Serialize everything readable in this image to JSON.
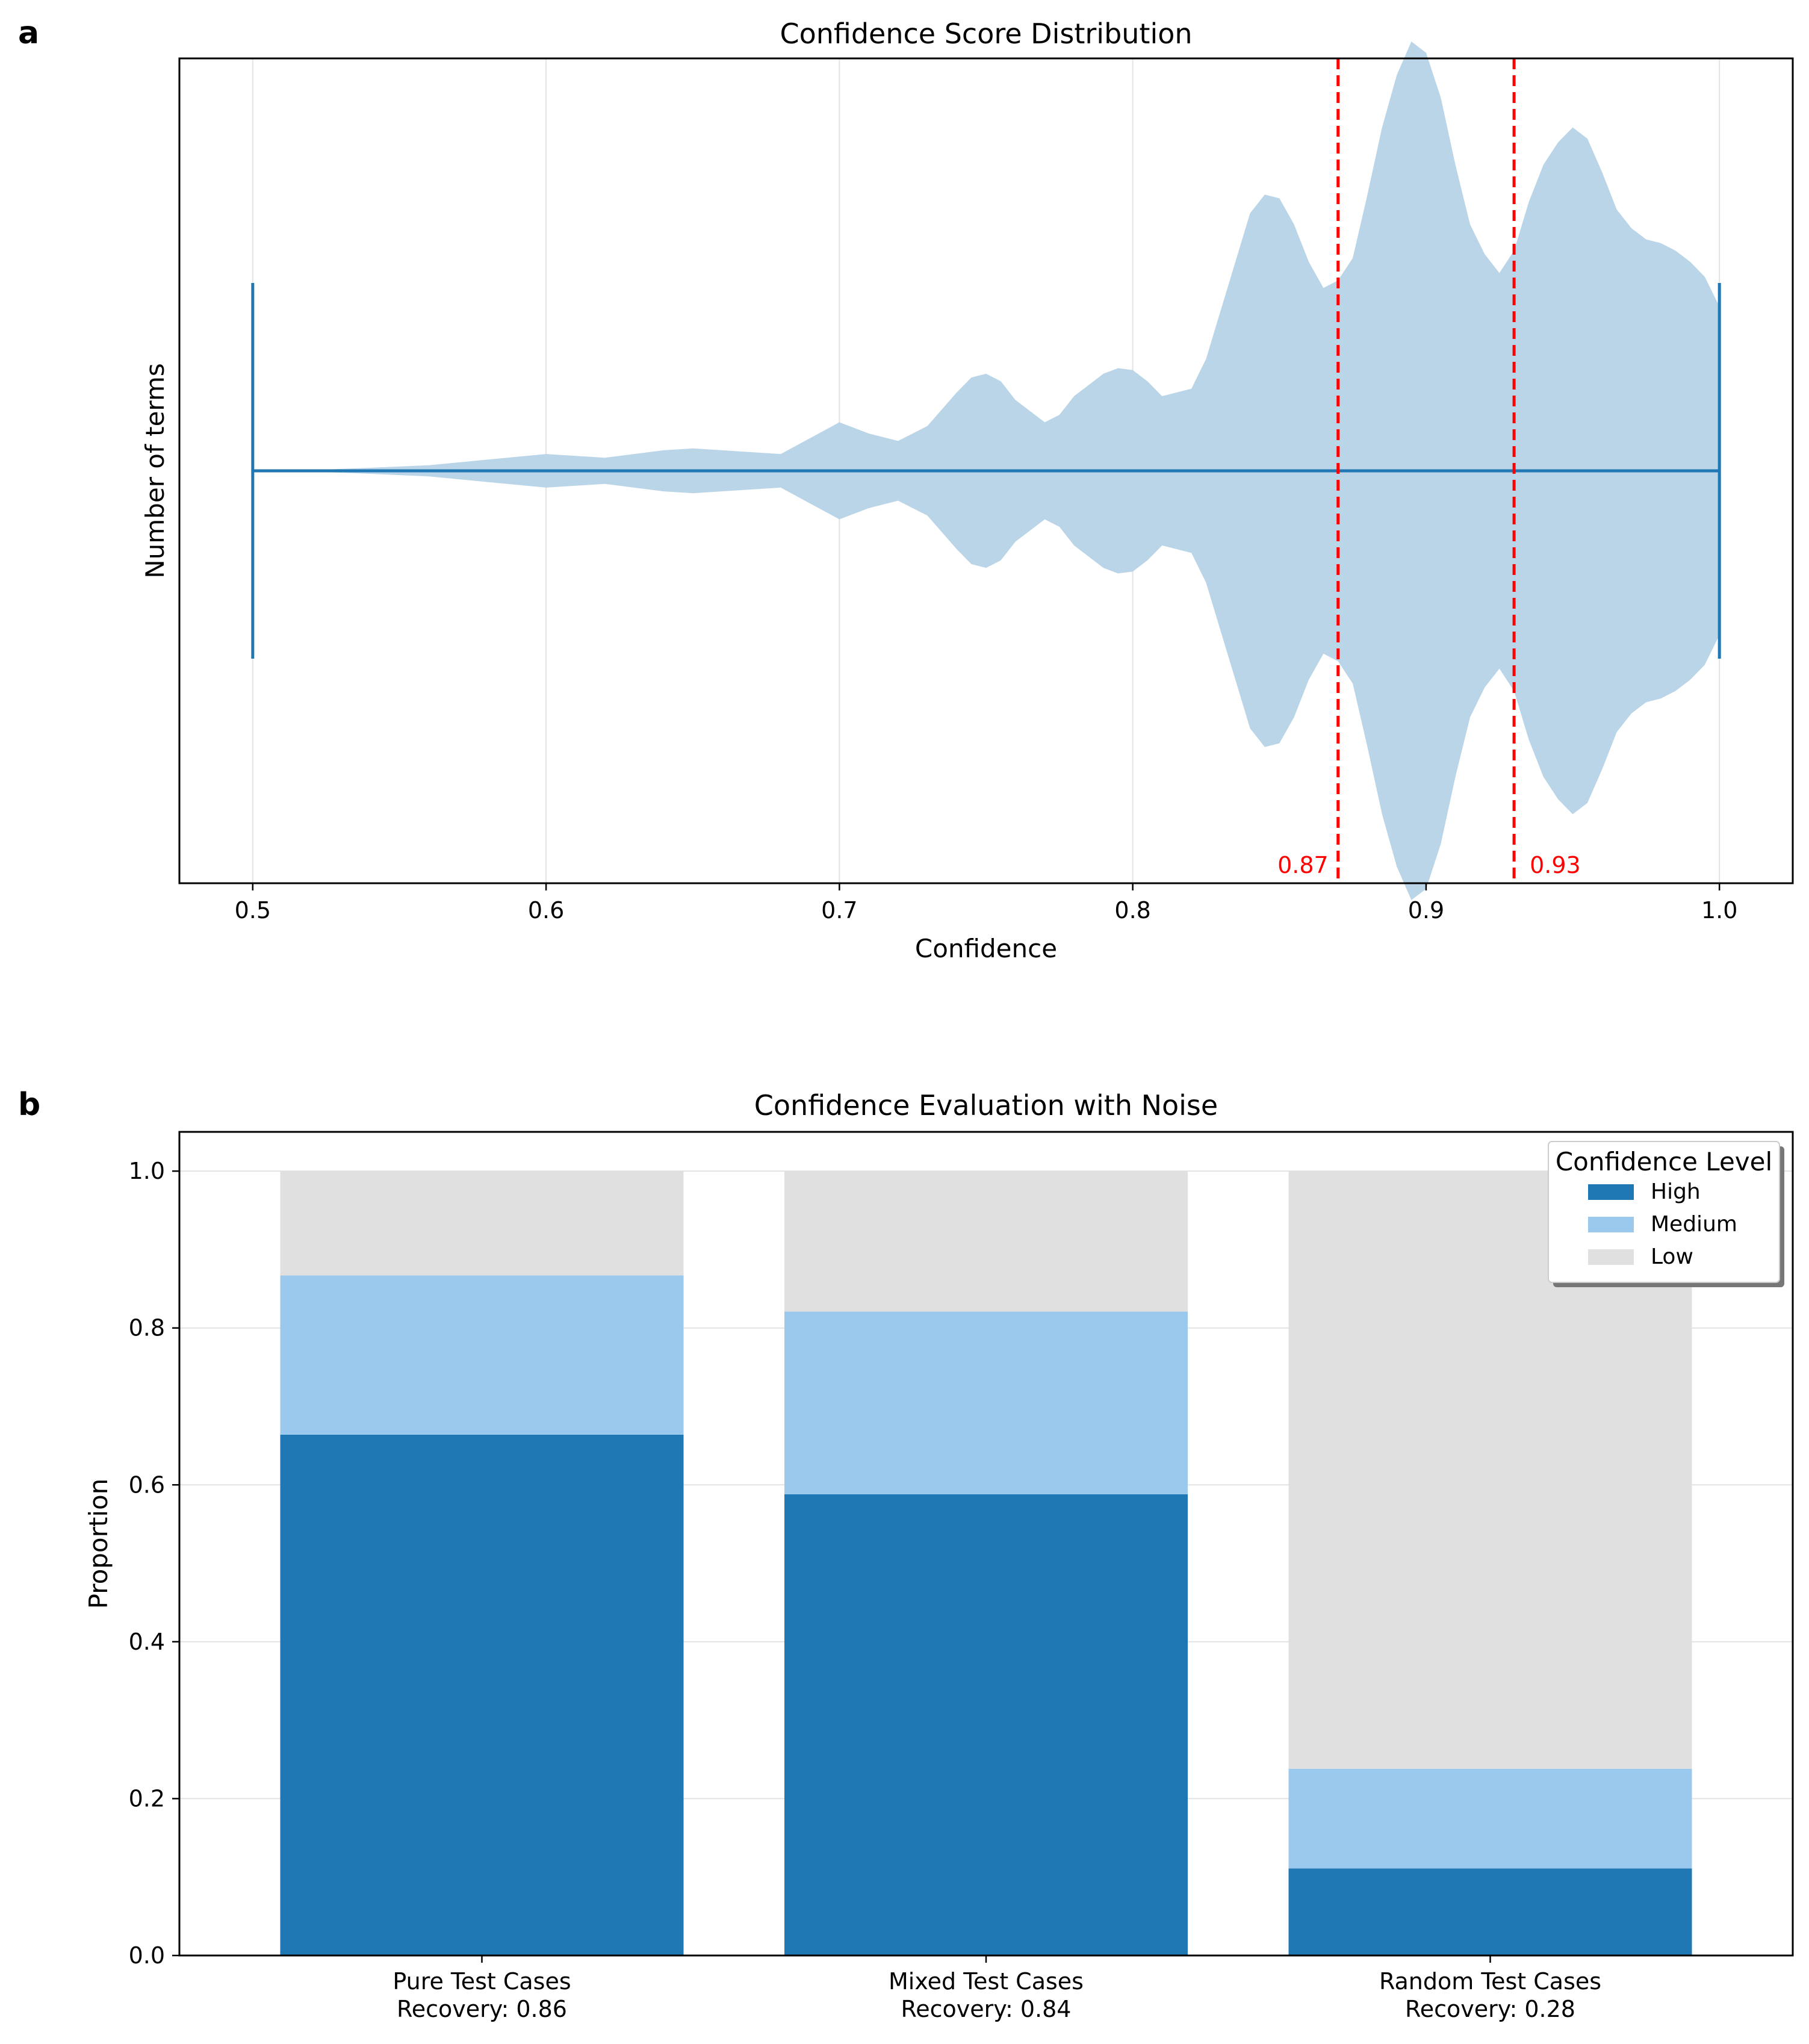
{
  "figure": {
    "panels": [
      {
        "letter": "a"
      },
      {
        "letter": "b"
      }
    ]
  },
  "chart_data": [
    {
      "type": "violin",
      "title": "Confidence Score Distribution",
      "xlabel": "Confidence",
      "ylabel": "Number of terms",
      "xlim": [
        0.475,
        1.025
      ],
      "xticks": [
        0.5,
        0.6,
        0.7,
        0.8,
        0.9,
        1.0
      ],
      "xtick_labels": [
        "0.5",
        "0.6",
        "0.7",
        "0.8",
        "0.9",
        "1.0"
      ],
      "grid": "vertical",
      "range": [
        0.5,
        1.0
      ],
      "density": {
        "x": [
          0.5,
          0.52,
          0.54,
          0.56,
          0.58,
          0.6,
          0.62,
          0.64,
          0.65,
          0.66,
          0.68,
          0.7,
          0.71,
          0.72,
          0.73,
          0.74,
          0.745,
          0.75,
          0.755,
          0.76,
          0.77,
          0.775,
          0.78,
          0.79,
          0.795,
          0.8,
          0.805,
          0.81,
          0.82,
          0.825,
          0.83,
          0.835,
          0.84,
          0.845,
          0.85,
          0.855,
          0.86,
          0.865,
          0.87,
          0.875,
          0.88,
          0.885,
          0.89,
          0.895,
          0.9,
          0.905,
          0.91,
          0.915,
          0.92,
          0.925,
          0.93,
          0.935,
          0.94,
          0.945,
          0.95,
          0.955,
          0.96,
          0.965,
          0.97,
          0.975,
          0.98,
          0.985,
          0.99,
          0.995,
          1.0
        ],
        "width": [
          0.0,
          0.002,
          0.008,
          0.015,
          0.03,
          0.045,
          0.035,
          0.055,
          0.06,
          0.055,
          0.045,
          0.13,
          0.1,
          0.08,
          0.12,
          0.21,
          0.25,
          0.26,
          0.24,
          0.19,
          0.13,
          0.15,
          0.2,
          0.26,
          0.275,
          0.27,
          0.24,
          0.2,
          0.22,
          0.3,
          0.43,
          0.56,
          0.69,
          0.74,
          0.73,
          0.66,
          0.56,
          0.49,
          0.51,
          0.57,
          0.74,
          0.92,
          1.06,
          1.15,
          1.12,
          1.0,
          0.82,
          0.66,
          0.58,
          0.53,
          0.59,
          0.72,
          0.82,
          0.88,
          0.92,
          0.89,
          0.8,
          0.7,
          0.65,
          0.62,
          0.61,
          0.59,
          0.56,
          0.52,
          0.44
        ]
      },
      "reference_lines": [
        {
          "x": 0.87,
          "label": "0.87",
          "color": "#ff0000",
          "style": "dashed"
        },
        {
          "x": 0.93,
          "label": "0.93",
          "color": "#ff0000",
          "style": "dashed"
        }
      ],
      "colors": {
        "body": "#bad5e8",
        "line": "#1f77b4"
      }
    },
    {
      "type": "bar",
      "stacked": true,
      "title": "Confidence Evaluation with Noise",
      "xlabel": "",
      "ylabel": "Proportion",
      "ylim": [
        0,
        1.05
      ],
      "yticks": [
        0.0,
        0.2,
        0.4,
        0.6,
        0.8,
        1.0
      ],
      "ytick_labels": [
        "0.0",
        "0.2",
        "0.4",
        "0.6",
        "0.8",
        "1.0"
      ],
      "grid": "horizontal",
      "categories": [
        [
          "Pure Test Cases",
          "Recovery: 0.86"
        ],
        [
          "Mixed Test Cases",
          "Recovery: 0.84"
        ],
        [
          "Random Test Cases",
          "Recovery: 0.28"
        ]
      ],
      "series": [
        {
          "name": "High",
          "color": "#1f77b4",
          "values": [
            0.664,
            0.588,
            0.111
          ]
        },
        {
          "name": "Medium",
          "color": "#9bc9ed",
          "values": [
            0.203,
            0.233,
            0.127
          ]
        },
        {
          "name": "Low",
          "color": "#e0e0e0",
          "values": [
            0.133,
            0.179,
            0.762
          ]
        }
      ],
      "legend": {
        "title": "Confidence Level",
        "location": "top-right"
      }
    }
  ]
}
